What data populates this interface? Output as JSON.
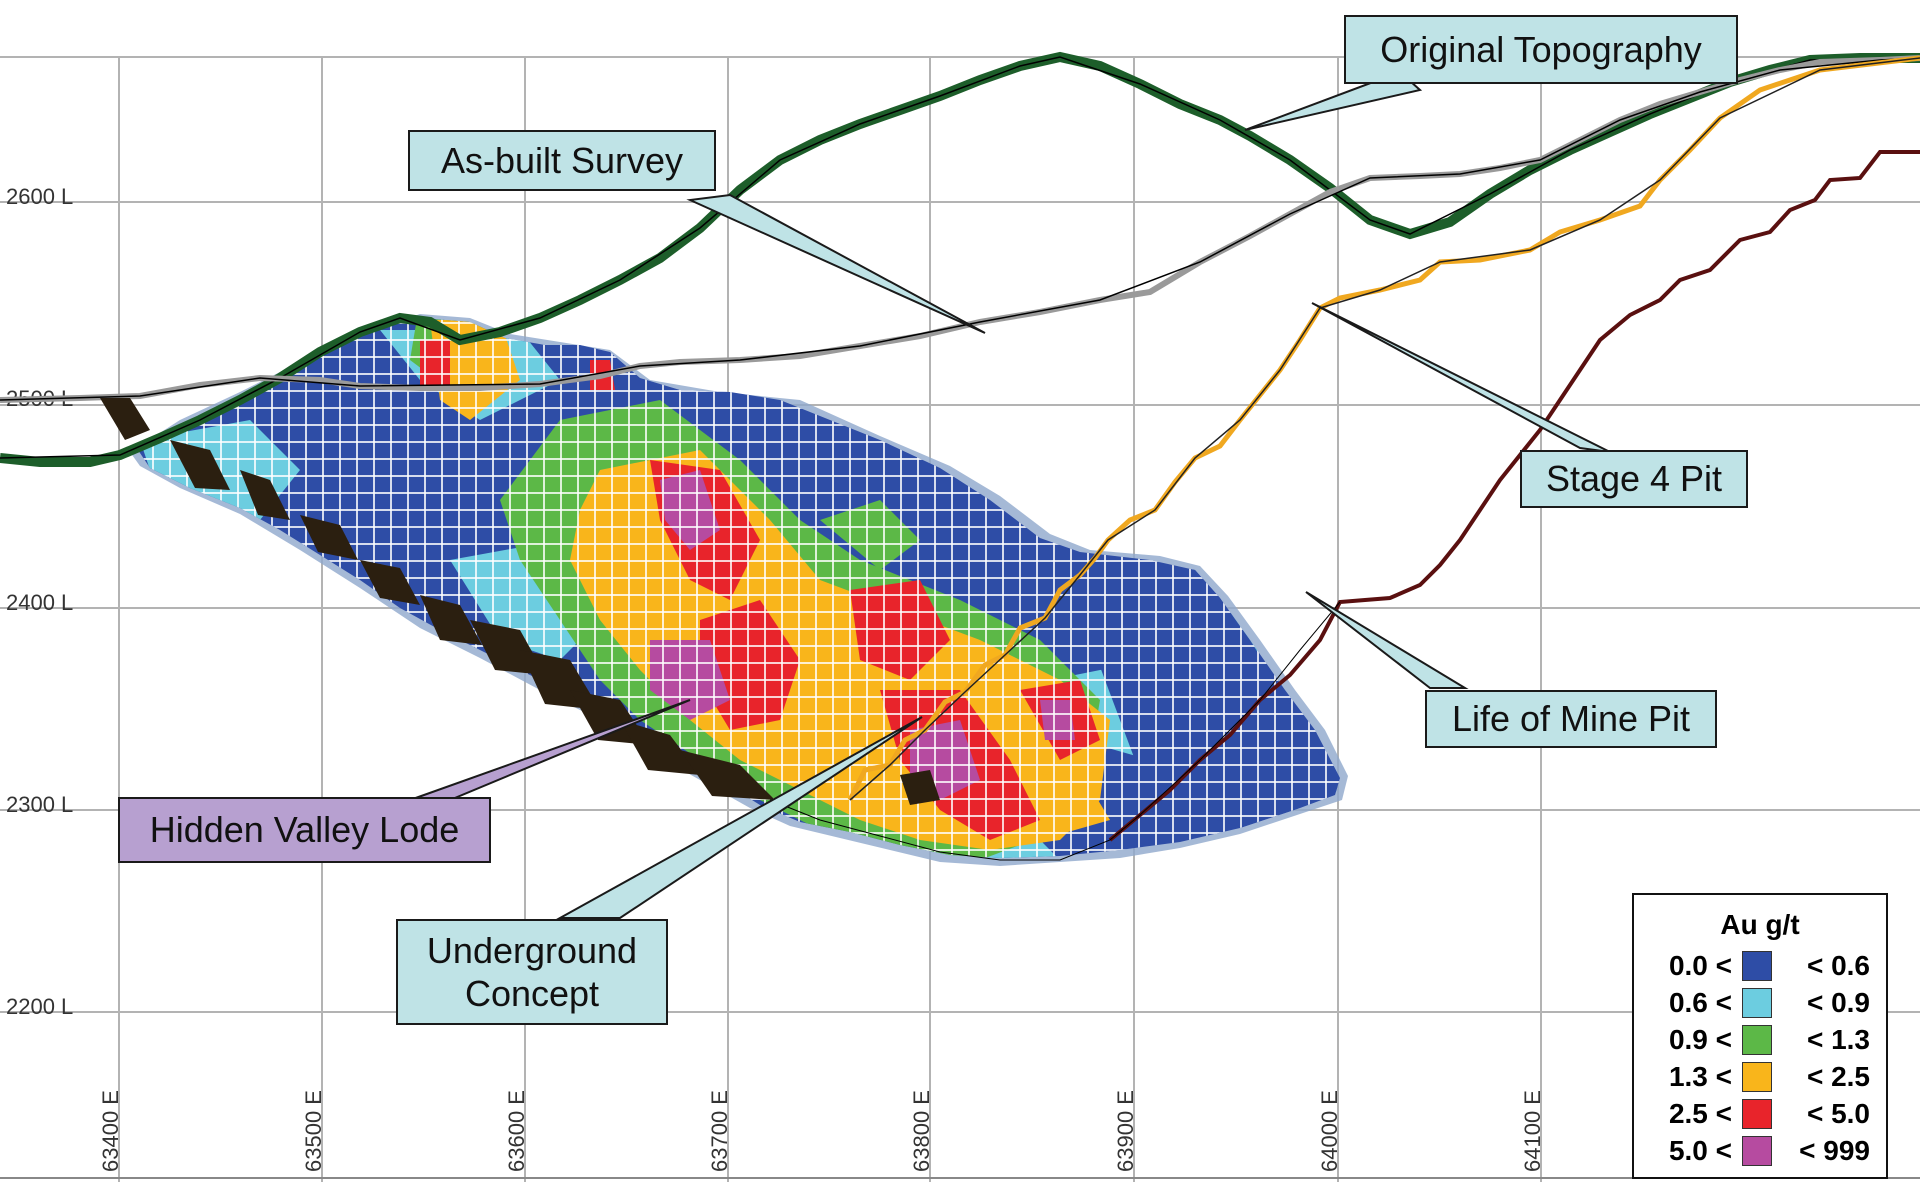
{
  "labels": {
    "original_topography": "Original Topography",
    "as_built_survey": "As-built Survey",
    "stage4_pit": "Stage 4 Pit",
    "life_of_mine_pit": "Life of Mine Pit",
    "hidden_valley_lode": "Hidden Valley Lode",
    "underground_concept_line1": "Underground",
    "underground_concept_line2": "Concept"
  },
  "elevation_labels": [
    "2600 L",
    "2500 L",
    "2400 L",
    "2300 L",
    "2200 L"
  ],
  "easting_labels": [
    "63400 E",
    "63500 E",
    "63600 E",
    "63700 E",
    "63800 E",
    "63900 E",
    "64000 E",
    "64100 E"
  ],
  "legend": {
    "title": "Au g/t",
    "rows": [
      {
        "low": "0.0 <",
        "high": "<  0.6",
        "color": "#2e4da6"
      },
      {
        "low": "0.6 <",
        "high": "<  0.9",
        "color": "#6ccde0"
      },
      {
        "low": "0.9 <",
        "high": "<  1.3",
        "color": "#5cb847"
      },
      {
        "low": "1.3 <",
        "high": "<  2.5",
        "color": "#f9b51b"
      },
      {
        "low": "2.5 <",
        "high": "<  5.0",
        "color": "#e8242b"
      },
      {
        "low": "5.0 <",
        "high": "< 999",
        "color": "#b64ba0"
      }
    ]
  },
  "colors": {
    "original_topography": "#1d5e2a",
    "as_built_survey": "#9a9a9a",
    "stage4_pit": "#f0a820",
    "life_of_mine_pit": "#5a1010",
    "underground": "#2b1f10",
    "callout_fill": "#bfe3e6",
    "callout_purple": "#b7a0d0",
    "grid": "#b3b3b3"
  }
}
